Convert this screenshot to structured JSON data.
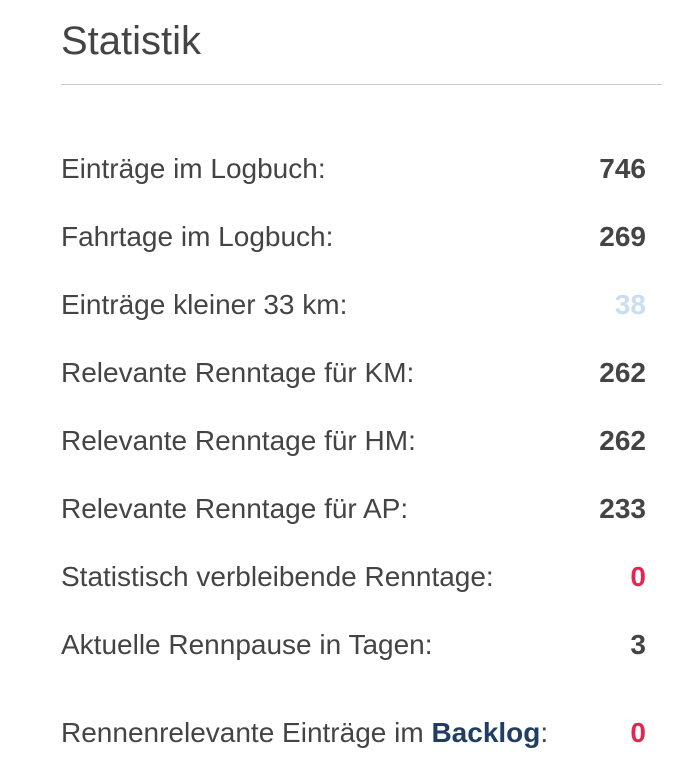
{
  "panel": {
    "title": "Statistik"
  },
  "stats": [
    {
      "label": "Einträge im Logbuch:",
      "value": "746"
    },
    {
      "label": "Fahrtage im Logbuch:",
      "value": "269"
    },
    {
      "label": "Einträge kleiner 33 km:",
      "value": "38"
    },
    {
      "label": "Relevante Renntage für KM:",
      "value": "262"
    },
    {
      "label": "Relevante Renntage für HM:",
      "value": "262"
    },
    {
      "label": "Relevante Renntage für AP:",
      "value": "233"
    },
    {
      "label": "Statistisch verbleibende Renntage:",
      "value": "0"
    },
    {
      "label": "Aktuelle Rennpause in Tagen:",
      "value": "3"
    }
  ],
  "backlog": {
    "prefix": "Rennenrelevante Einträge im ",
    "link": "Backlog",
    "suffix": ":",
    "value": "0"
  },
  "colors": {
    "text": "#444444",
    "faded_value": "#c9dff1",
    "alert_value": "#e3254f",
    "link": "#213d66"
  }
}
